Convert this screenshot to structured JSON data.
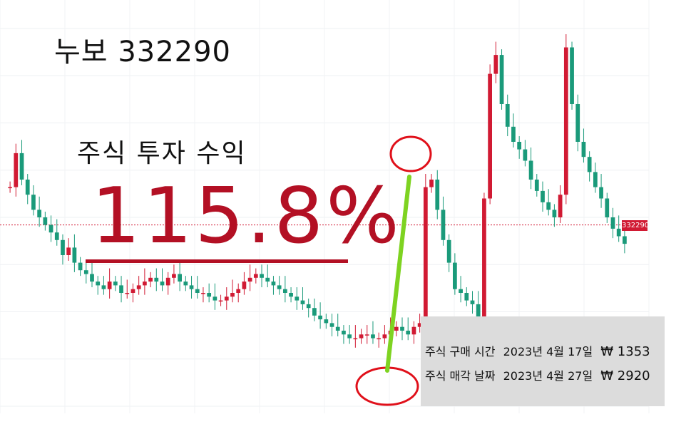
{
  "title": "누보 332290",
  "subtitle": "주식 투자 수익",
  "profit_label": "115.8%",
  "price_tag": "332290",
  "info": {
    "buy": {
      "label": "주식 구매 시간",
      "date": "2023년 4월 17일",
      "price": "₩ 1353"
    },
    "sell": {
      "label": "주식 매각 날짜",
      "date": "2023년 4월 27일",
      "price": "₩ 2920"
    }
  },
  "colors": {
    "up": "#d11a33",
    "down": "#1a9a7a",
    "highlight": "#e0101a",
    "arrow": "#7ed321",
    "price_line": "#d11a33"
  },
  "chart_data": {
    "type": "candlestick",
    "title": "누보 332290",
    "xlabel": "",
    "ylabel": "",
    "grid": true,
    "ylim": [
      0,
      100
    ],
    "current_price_level": 48,
    "buy_point": {
      "index": 87,
      "price": 1353
    },
    "sell_point": {
      "index": 93,
      "price": 2920
    },
    "closes": [
      58,
      67,
      60,
      56,
      52,
      50,
      48,
      46,
      44,
      40,
      42,
      38,
      36,
      35,
      33,
      32,
      31,
      33,
      32,
      30,
      30,
      31,
      32,
      33,
      34,
      33,
      32,
      34,
      35,
      33,
      32,
      31,
      30,
      30,
      29,
      28,
      28,
      29,
      30,
      31,
      33,
      34,
      35,
      34,
      33,
      32,
      31,
      30,
      29,
      28,
      27,
      26,
      24,
      23,
      22,
      21,
      20,
      19,
      18,
      18,
      19,
      19,
      18,
      18,
      19,
      20,
      21,
      20,
      19,
      21,
      22,
      58,
      60,
      52,
      44,
      38,
      31,
      30,
      28,
      27,
      20,
      55,
      88,
      93,
      80,
      74,
      70,
      68,
      65,
      60,
      57,
      54,
      52,
      50,
      56,
      95,
      80,
      70,
      66,
      62,
      58,
      55,
      50,
      47,
      45,
      43
    ]
  }
}
